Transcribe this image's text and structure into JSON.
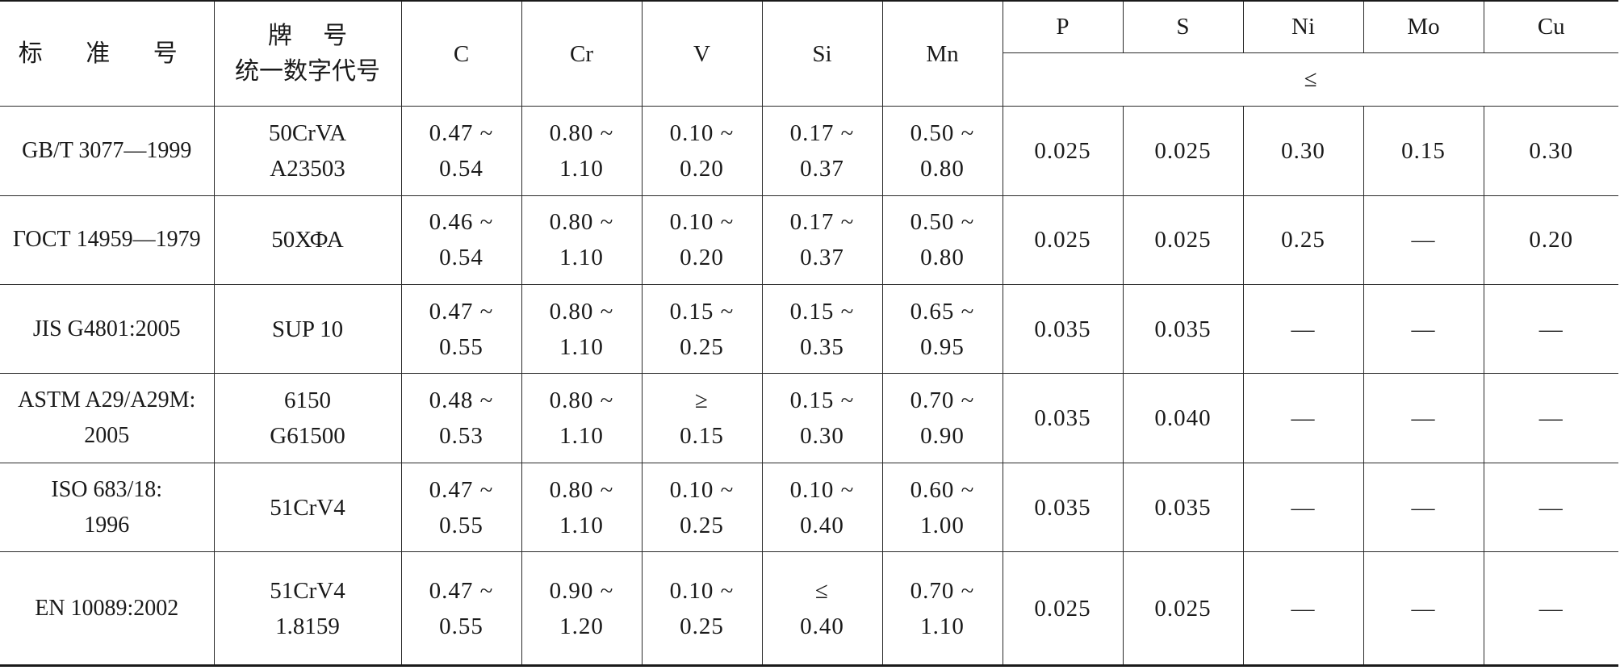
{
  "header": {
    "standard_no": "标 准 号",
    "grade_line1": "牌    号",
    "grade_line2": "统一数字代号",
    "elements": [
      "C",
      "Cr",
      "V",
      "Si",
      "Mn",
      "P",
      "S",
      "Ni",
      "Mo",
      "Cu"
    ],
    "max_symbol": "≤"
  },
  "rows": [
    {
      "standard": [
        "GB/T 3077—1999"
      ],
      "grade": [
        "50CrVA",
        "A23503"
      ],
      "C": [
        "0.47 ~",
        "0.54"
      ],
      "Cr": [
        "0.80 ~",
        "1.10"
      ],
      "V": [
        "0.10 ~",
        "0.20"
      ],
      "Si": [
        "0.17 ~",
        "0.37"
      ],
      "Mn": [
        "0.50 ~",
        "0.80"
      ],
      "P": "0.025",
      "S": "0.025",
      "Ni": "0.30",
      "Mo": "0.15",
      "Cu": "0.30"
    },
    {
      "standard": [
        "ГОСТ 14959—1979"
      ],
      "grade": [
        "50ХФА"
      ],
      "C": [
        "0.46 ~",
        "0.54"
      ],
      "Cr": [
        "0.80 ~",
        "1.10"
      ],
      "V": [
        "0.10 ~",
        "0.20"
      ],
      "Si": [
        "0.17 ~",
        "0.37"
      ],
      "Mn": [
        "0.50 ~",
        "0.80"
      ],
      "P": "0.025",
      "S": "0.025",
      "Ni": "0.25",
      "Mo": "—",
      "Cu": "0.20"
    },
    {
      "standard": [
        "JIS G4801:2005"
      ],
      "grade": [
        "SUP 10"
      ],
      "C": [
        "0.47 ~",
        "0.55"
      ],
      "Cr": [
        "0.80 ~",
        "1.10"
      ],
      "V": [
        "0.15 ~",
        "0.25"
      ],
      "Si": [
        "0.15 ~",
        "0.35"
      ],
      "Mn": [
        "0.65 ~",
        "0.95"
      ],
      "P": "0.035",
      "S": "0.035",
      "Ni": "—",
      "Mo": "—",
      "Cu": "—"
    },
    {
      "standard": [
        "ASTM A29/A29M:",
        "2005"
      ],
      "grade": [
        "6150",
        "G61500"
      ],
      "C": [
        "0.48 ~",
        "0.53"
      ],
      "Cr": [
        "0.80 ~",
        "1.10"
      ],
      "V": [
        "≥",
        "0.15"
      ],
      "Si": [
        "0.15 ~",
        "0.30"
      ],
      "Mn": [
        "0.70 ~",
        "0.90"
      ],
      "P": "0.035",
      "S": "0.040",
      "Ni": "—",
      "Mo": "—",
      "Cu": "—"
    },
    {
      "standard": [
        "ISO 683/18:",
        "1996"
      ],
      "grade": [
        "51CrV4"
      ],
      "C": [
        "0.47 ~",
        "0.55"
      ],
      "Cr": [
        "0.80 ~",
        "1.10"
      ],
      "V": [
        "0.10 ~",
        "0.25"
      ],
      "Si": [
        "0.10 ~",
        "0.40"
      ],
      "Mn": [
        "0.60 ~",
        "1.00"
      ],
      "P": "0.035",
      "S": "0.035",
      "Ni": "—",
      "Mo": "—",
      "Cu": "—"
    },
    {
      "standard": [
        "EN 10089:2002"
      ],
      "grade": [
        "51CrV4",
        "1.8159"
      ],
      "C": [
        "0.47 ~",
        "0.55"
      ],
      "Cr": [
        "0.90 ~",
        "1.20"
      ],
      "V": [
        "0.10 ~",
        "0.25"
      ],
      "Si": [
        "≤",
        "0.40"
      ],
      "Mn": [
        "0.70 ~",
        "1.10"
      ],
      "P": "0.025",
      "S": "0.025",
      "Ni": "—",
      "Mo": "—",
      "Cu": "—"
    }
  ]
}
